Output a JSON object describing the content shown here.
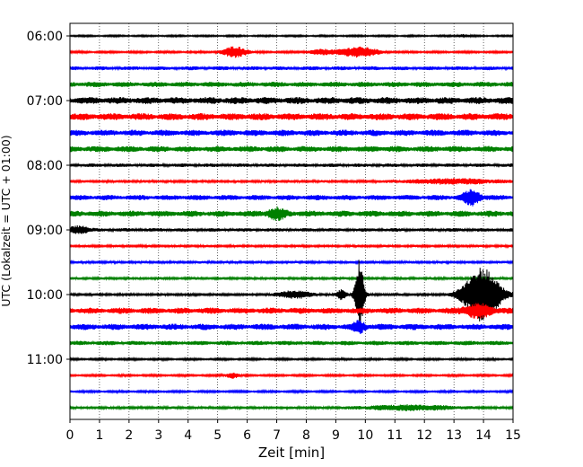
{
  "chart_data": {
    "type": "line",
    "subtype": "helicorder-seismogram",
    "title": "",
    "xlabel": "Zeit  [min]",
    "ylabel": "UTC (Lokalzeit = UTC + 01:00)",
    "xlim": [
      0,
      15
    ],
    "x_ticks": [
      0,
      1,
      2,
      3,
      4,
      5,
      6,
      7,
      8,
      9,
      10,
      11,
      12,
      13,
      14,
      15
    ],
    "x_tick_labels": [
      "0",
      "1",
      "2",
      "3",
      "4",
      "5",
      "6",
      "7",
      "8",
      "9",
      "10",
      "11",
      "12",
      "13",
      "14",
      "15"
    ],
    "x_grid": "dotted vertical lines at each minute",
    "y_tick_labels": [
      "06:00",
      "07:00",
      "08:00",
      "09:00",
      "10:00",
      "11:00"
    ],
    "minutes_per_trace": 15,
    "trace_colors": [
      "#000000",
      "#ff0000",
      "#0000ff",
      "#008000"
    ],
    "traces": [
      {
        "start": "06:00",
        "color": "#000000",
        "base_amp": 1.0,
        "events": [
          {
            "t": 13.3,
            "amp": 1.5,
            "width": 0.2
          }
        ]
      },
      {
        "start": "06:15",
        "color": "#ff0000",
        "base_amp": 1.2,
        "events": [
          {
            "t": 5.6,
            "amp": 6.0,
            "width": 0.4
          },
          {
            "t": 9.8,
            "amp": 5.5,
            "width": 0.6
          },
          {
            "t": 8.6,
            "amp": 2.5,
            "width": 0.5
          }
        ]
      },
      {
        "start": "06:30",
        "color": "#0000ff",
        "base_amp": 2.2,
        "events": []
      },
      {
        "start": "06:45",
        "color": "#008000",
        "base_amp": 3.0,
        "events": []
      },
      {
        "start": "07:00",
        "color": "#000000",
        "base_amp": 4.0,
        "events": []
      },
      {
        "start": "07:15",
        "color": "#ff0000",
        "base_amp": 4.0,
        "events": []
      },
      {
        "start": "07:30",
        "color": "#0000ff",
        "base_amp": 3.5,
        "events": []
      },
      {
        "start": "07:45",
        "color": "#008000",
        "base_amp": 3.5,
        "events": []
      },
      {
        "start": "08:00",
        "color": "#000000",
        "base_amp": 2.0,
        "events": []
      },
      {
        "start": "08:15",
        "color": "#ff0000",
        "base_amp": 1.5,
        "events": [
          {
            "t": 13.0,
            "amp": 2.5,
            "width": 1.5
          }
        ]
      },
      {
        "start": "08:30",
        "color": "#0000ff",
        "base_amp": 3.0,
        "events": [
          {
            "t": 13.6,
            "amp": 7.0,
            "width": 0.3
          }
        ]
      },
      {
        "start": "08:45",
        "color": "#008000",
        "base_amp": 3.5,
        "events": [
          {
            "t": 7.0,
            "amp": 5.0,
            "width": 0.3
          }
        ]
      },
      {
        "start": "09:00",
        "color": "#000000",
        "base_amp": 2.0,
        "events": [
          {
            "t": 0.3,
            "amp": 4.0,
            "width": 0.3
          }
        ]
      },
      {
        "start": "09:15",
        "color": "#ff0000",
        "base_amp": 1.5,
        "events": []
      },
      {
        "start": "09:30",
        "color": "#0000ff",
        "base_amp": 1.5,
        "events": []
      },
      {
        "start": "09:45",
        "color": "#008000",
        "base_amp": 1.5,
        "events": []
      },
      {
        "start": "10:00",
        "color": "#000000",
        "base_amp": 1.5,
        "events": [
          {
            "t": 9.8,
            "amp": 38.0,
            "width": 0.15
          },
          {
            "t": 9.2,
            "amp": 5.0,
            "width": 0.15
          },
          {
            "t": 7.6,
            "amp": 4.0,
            "width": 0.5
          },
          {
            "t": 13.95,
            "amp": 30.0,
            "width": 0.6
          }
        ]
      },
      {
        "start": "10:15",
        "color": "#ff0000",
        "base_amp": 3.5,
        "events": [
          {
            "t": 13.8,
            "amp": 6.0,
            "width": 0.5
          }
        ]
      },
      {
        "start": "10:30",
        "color": "#0000ff",
        "base_amp": 3.5,
        "events": [
          {
            "t": 9.8,
            "amp": 5.0,
            "width": 0.2
          }
        ]
      },
      {
        "start": "10:45",
        "color": "#008000",
        "base_amp": 2.5,
        "events": []
      },
      {
        "start": "11:00",
        "color": "#000000",
        "base_amp": 1.2,
        "events": []
      },
      {
        "start": "11:15",
        "color": "#ff0000",
        "base_amp": 1.2,
        "events": [
          {
            "t": 5.5,
            "amp": 3.0,
            "width": 0.2
          }
        ]
      },
      {
        "start": "11:30",
        "color": "#0000ff",
        "base_amp": 1.2,
        "events": []
      },
      {
        "start": "11:45",
        "color": "#008000",
        "base_amp": 1.5,
        "events": [
          {
            "t": 11.5,
            "amp": 2.5,
            "width": 1.5
          }
        ]
      }
    ]
  }
}
